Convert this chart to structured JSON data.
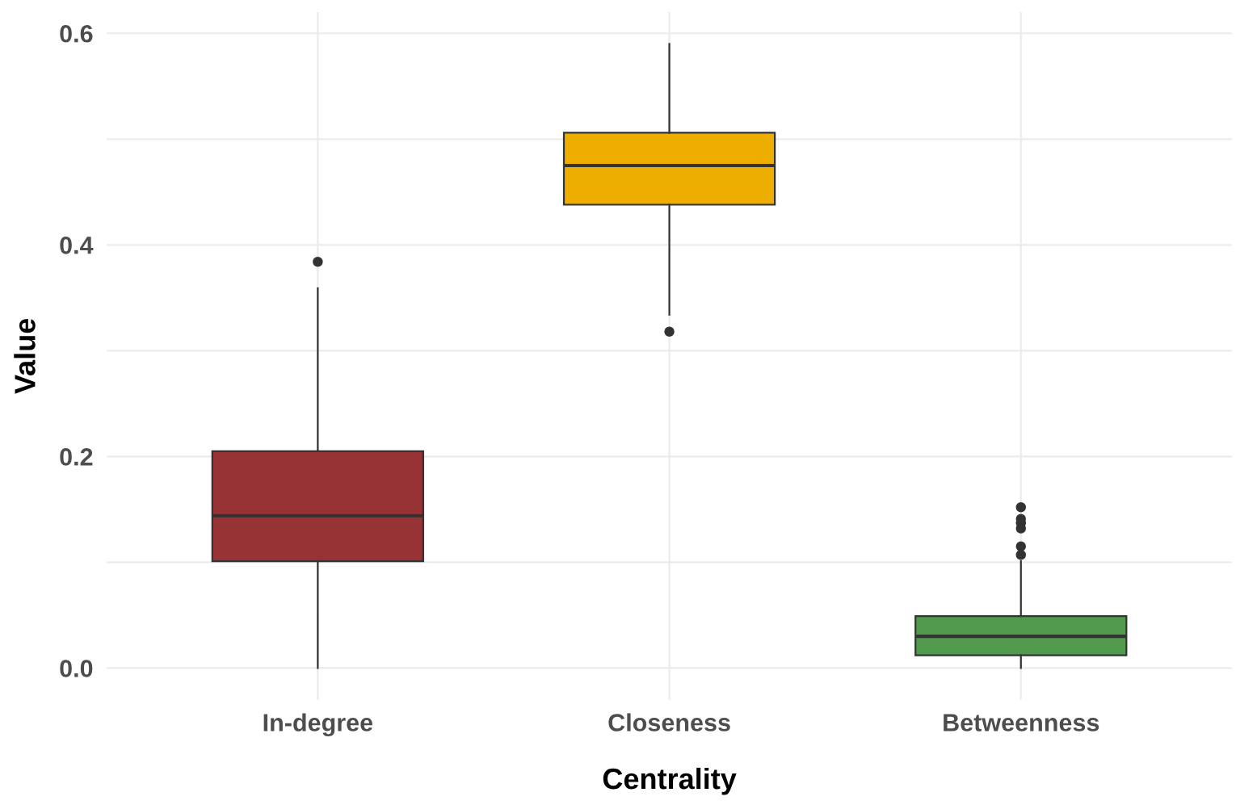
{
  "chart_data": {
    "type": "box",
    "xlabel": "Centrality",
    "ylabel": "Value",
    "categories": [
      "In-degree",
      "Closeness",
      "Betweenness"
    ],
    "colors": [
      "#983335",
      "#edae01",
      "#519a4d"
    ],
    "boxes": [
      {
        "low": 0.0,
        "q1": 0.101,
        "median": 0.144,
        "q3": 0.205,
        "high": 0.359,
        "outliers": [
          0.384
        ]
      },
      {
        "low": 0.334,
        "q1": 0.438,
        "median": 0.475,
        "q3": 0.506,
        "high": 0.59,
        "outliers": [
          0.318
        ]
      },
      {
        "low": 0.0,
        "q1": 0.012,
        "median": 0.03,
        "q3": 0.049,
        "high": 0.101,
        "outliers": [
          0.107,
          0.115,
          0.132,
          0.137,
          0.141,
          0.152
        ]
      }
    ],
    "ylim": [
      -0.03,
      0.62
    ],
    "yticks": [
      {
        "value": 0,
        "label": "0.0"
      },
      {
        "value": 0.1,
        "label": null
      },
      {
        "value": 0.2,
        "label": "0.2"
      },
      {
        "value": 0.3,
        "label": null
      },
      {
        "value": 0.4,
        "label": "0.4"
      },
      {
        "value": 0.5,
        "label": null
      },
      {
        "value": 0.6,
        "label": "0.6"
      }
    ],
    "grid": true
  }
}
